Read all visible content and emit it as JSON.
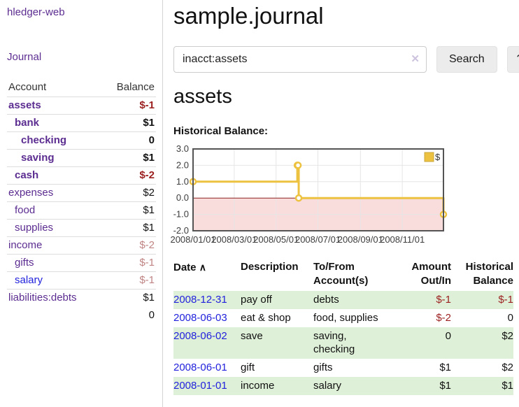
{
  "colors": {
    "link-purple": "#5c2d91",
    "link-blue": "#2222dd",
    "neg-strong": "#9c1f1f",
    "neg-soft": "#c08484",
    "row-stripe": "#dff0d8"
  },
  "sidebar": {
    "app_title": "hledger-web",
    "journal_label": "Journal",
    "accounts_header": {
      "account": "Account",
      "balance": "Balance"
    },
    "accounts": [
      {
        "name": "assets",
        "balance": "$-1",
        "indent": 0,
        "bold": true,
        "balance_class": "neg-strong"
      },
      {
        "name": "bank",
        "balance": "$1",
        "indent": 1,
        "bold": true
      },
      {
        "name": "checking",
        "balance": "0",
        "indent": 2,
        "bold": true
      },
      {
        "name": "saving",
        "balance": "$1",
        "indent": 2,
        "bold": true
      },
      {
        "name": "cash",
        "balance": "$-2",
        "indent": 1,
        "bold": true,
        "balance_class": "neg-strong"
      },
      {
        "name": "expenses",
        "balance": "$2",
        "indent": 0
      },
      {
        "name": "food",
        "balance": "$1",
        "indent": 1
      },
      {
        "name": "supplies",
        "balance": "$1",
        "indent": 1
      },
      {
        "name": "income",
        "balance": "$-2",
        "indent": 0,
        "balance_class": "neg-soft"
      },
      {
        "name": "gifts",
        "balance": "$-1",
        "indent": 1,
        "balance_class": "neg-soft"
      },
      {
        "name": "salary",
        "balance": "$-1",
        "indent": 1,
        "link_blue": true,
        "balance_class": "neg-soft"
      },
      {
        "name": "liabilities:debts",
        "balance": "$1",
        "indent": 0
      }
    ],
    "total": "0"
  },
  "main": {
    "title": "sample.journal",
    "search": {
      "value": "inacct:assets",
      "clear_icon": "✕",
      "button_label": "Search",
      "help_label": "?"
    },
    "account_heading": "assets"
  },
  "chart_data": {
    "type": "line",
    "title": "Historical Balance:",
    "legend": "$",
    "legend_position": "top-right",
    "grid": true,
    "xlim": [
      "2008-01-01",
      "2008-12-31"
    ],
    "ylim": [
      -2.0,
      3.0
    ],
    "y_ticks": [
      3.0,
      2.0,
      1.0,
      0.0,
      -1.0,
      -2.0
    ],
    "x_ticks": [
      "2008/01/01",
      "2008/03/01",
      "2008/05/01",
      "2008/07/01",
      "2008/09/01",
      "2008/11/01"
    ],
    "series": [
      {
        "name": "$",
        "color": "#edc240",
        "step": true,
        "points": [
          [
            "2008-01-01",
            1
          ],
          [
            "2008-06-01",
            2
          ],
          [
            "2008-06-02",
            2
          ],
          [
            "2008-06-03",
            0
          ],
          [
            "2008-12-31",
            -1
          ]
        ]
      }
    ],
    "negative_fill": "#f9dcdc",
    "zero_line_color": "#8d2020"
  },
  "register": {
    "sort_icon": "∧",
    "columns": [
      {
        "label": "Date"
      },
      {
        "label": "Description"
      },
      {
        "label": "To/From Account(s)"
      },
      {
        "label": "Amount Out/In"
      },
      {
        "label": "Historical Balance"
      }
    ],
    "rows": [
      {
        "date": "2008-12-31",
        "description": "pay off",
        "accounts": "debts",
        "amount": "$-1",
        "amount_class": "neg-strong",
        "balance": "$-1",
        "balance_class": "neg-strong"
      },
      {
        "date": "2008-06-03",
        "description": "eat & shop",
        "accounts": "food, supplies",
        "amount": "$-2",
        "amount_class": "neg-strong",
        "balance": "0",
        "balance_class": ""
      },
      {
        "date": "2008-06-02",
        "description": "save",
        "accounts": "saving, checking",
        "amount": "0",
        "amount_class": "",
        "balance": "$2",
        "balance_class": ""
      },
      {
        "date": "2008-06-01",
        "description": "gift",
        "accounts": "gifts",
        "amount": "$1",
        "amount_class": "",
        "balance": "$2",
        "balance_class": ""
      },
      {
        "date": "2008-01-01",
        "description": "income",
        "accounts": "salary",
        "amount": "$1",
        "amount_class": "",
        "balance": "$1",
        "balance_class": ""
      }
    ]
  }
}
